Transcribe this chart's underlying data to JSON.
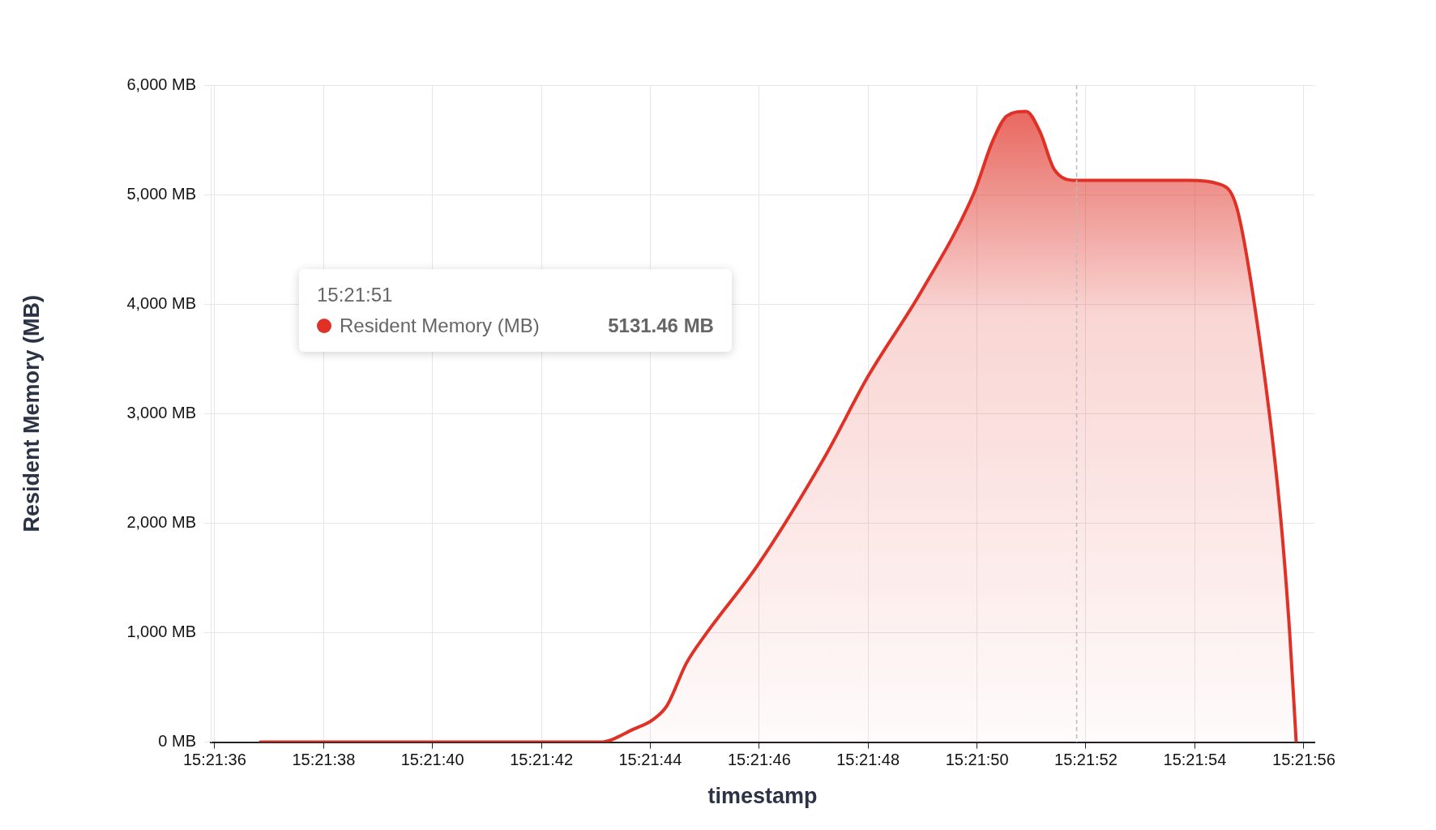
{
  "chart_data": {
    "type": "area",
    "xlabel": "timestamp",
    "ylabel": "Resident Memory (MB)",
    "series": [
      {
        "name": "Resident Memory (MB)",
        "color": "#e03127",
        "x": [
          15.360233,
          15.361967,
          15.362139,
          15.362236,
          15.362308,
          15.362406,
          15.362503,
          15.362772,
          15.363114,
          15.363333,
          15.363603,
          15.363872,
          15.363969,
          15.364042,
          15.364139,
          15.364211,
          15.364283,
          15.364397,
          15.364969,
          15.365117,
          15.365214,
          15.365336,
          15.365433,
          15.365483,
          15.365517
        ],
        "values": [
          0,
          0,
          120,
          205,
          335,
          720,
          980,
          1620,
          2610,
          3340,
          4110,
          5010,
          5490,
          5720,
          5760,
          5570,
          5230,
          5130,
          5130,
          5100,
          4880,
          3600,
          2140,
          1020,
          0
        ]
      }
    ],
    "xlim": [
      15.35998,
      15.36561
    ],
    "xticks": [
      {
        "value": 15.36,
        "label": "15:21:36"
      },
      {
        "value": 15.360556,
        "label": "15:21:38"
      },
      {
        "value": 15.361111,
        "label": "15:21:40"
      },
      {
        "value": 15.361667,
        "label": "15:21:42"
      },
      {
        "value": 15.362222,
        "label": "15:21:44"
      },
      {
        "value": 15.362778,
        "label": "15:21:46"
      },
      {
        "value": 15.363333,
        "label": "15:21:48"
      },
      {
        "value": 15.363889,
        "label": "15:21:50"
      },
      {
        "value": 15.364444,
        "label": "15:21:52"
      },
      {
        "value": 15.365,
        "label": "15:21:54"
      },
      {
        "value": 15.365556,
        "label": "15:21:56"
      }
    ],
    "ylim": [
      0,
      6000
    ],
    "yticks": [
      {
        "value": 0,
        "label": "0 MB"
      },
      {
        "value": 1000,
        "label": "1,000 MB"
      },
      {
        "value": 2000,
        "label": "2,000 MB"
      },
      {
        "value": 3000,
        "label": "3,000 MB"
      },
      {
        "value": 4000,
        "label": "4,000 MB"
      },
      {
        "value": 5000,
        "label": "5,000 MB"
      },
      {
        "value": 6000,
        "label": "6,000 MB"
      }
    ],
    "ref_lines": [
      {
        "axis": "x",
        "value": 15.364397,
        "color": "#bbbbbb",
        "line_style": "dashed"
      }
    ],
    "annotations": [
      "15:21:51",
      "5131.46 MB"
    ],
    "grid": true,
    "legend": "top left",
    "marker": "none",
    "line_style": "solid"
  }
}
